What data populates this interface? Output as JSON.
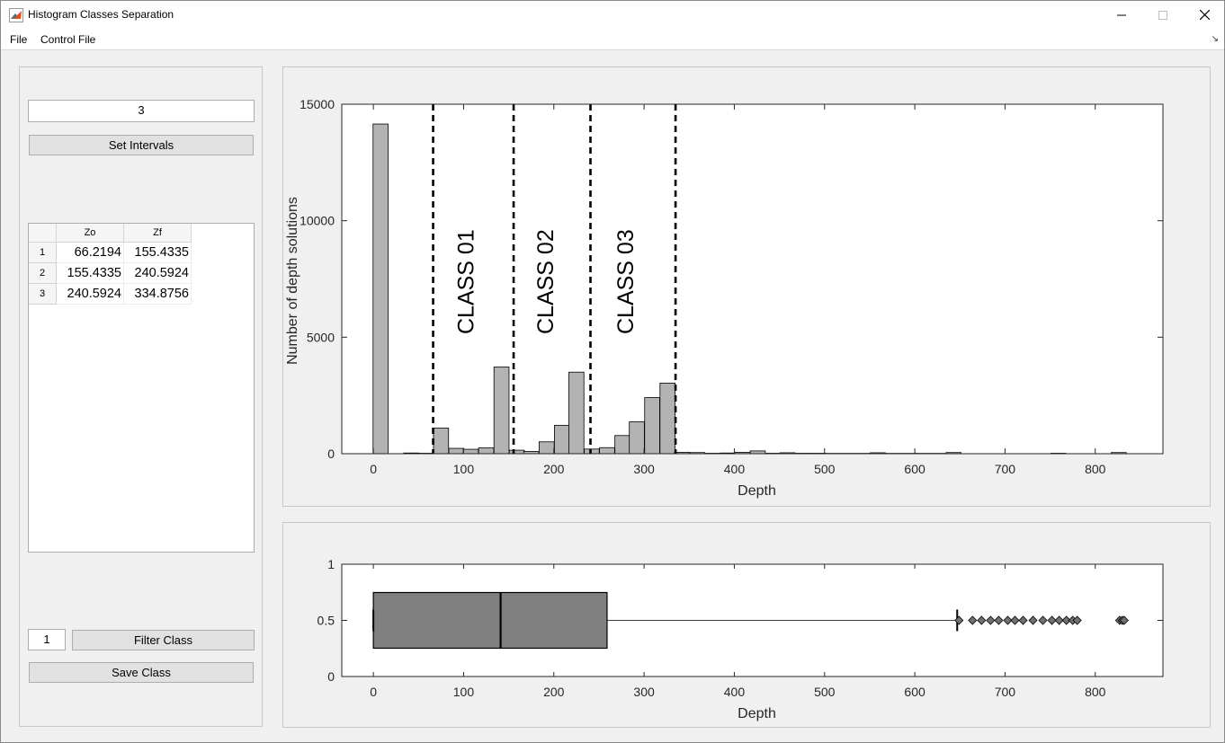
{
  "window": {
    "title": "Histogram Classes Separation"
  },
  "menu": {
    "items": [
      "File",
      "Control File"
    ]
  },
  "controls": {
    "intervals_value": "3",
    "set_intervals_label": "Set Intervals",
    "filter_value": "1",
    "filter_class_label": "Filter Class",
    "save_class_label": "Save Class"
  },
  "table": {
    "columns": [
      "Zo",
      "Zf"
    ],
    "row_labels": [
      "1",
      "2",
      "3"
    ],
    "rows": [
      [
        "66.2194",
        "155.4335"
      ],
      [
        "155.4335",
        "240.5924"
      ],
      [
        "240.5924",
        "334.8756"
      ]
    ]
  },
  "colors": {
    "bar_fill": "#b3b3b3",
    "box_fill": "#808080",
    "background": "#f0f0f0"
  },
  "chart_data": [
    {
      "type": "bar",
      "chart": "histogram",
      "xlabel": "Depth",
      "ylabel": "Number of depth solutions",
      "xlim": [
        -35,
        875
      ],
      "ylim": [
        0,
        15000
      ],
      "xticks": [
        0,
        100,
        200,
        300,
        400,
        500,
        600,
        700,
        800
      ],
      "yticks": [
        0,
        5000,
        10000,
        15000
      ],
      "bin_width": 16.7,
      "bins": [
        {
          "x": 8,
          "y": 14150
        },
        {
          "x": 42,
          "y": 30
        },
        {
          "x": 58,
          "y": 20
        },
        {
          "x": 75,
          "y": 1100
        },
        {
          "x": 92,
          "y": 230
        },
        {
          "x": 108,
          "y": 190
        },
        {
          "x": 125,
          "y": 250
        },
        {
          "x": 142,
          "y": 3720
        },
        {
          "x": 159,
          "y": 150
        },
        {
          "x": 175,
          "y": 100
        },
        {
          "x": 192,
          "y": 510
        },
        {
          "x": 209,
          "y": 1220
        },
        {
          "x": 225,
          "y": 3500
        },
        {
          "x": 242,
          "y": 200
        },
        {
          "x": 259,
          "y": 260
        },
        {
          "x": 276,
          "y": 780
        },
        {
          "x": 292,
          "y": 1370
        },
        {
          "x": 309,
          "y": 2410
        },
        {
          "x": 326,
          "y": 3030
        },
        {
          "x": 342,
          "y": 60
        },
        {
          "x": 359,
          "y": 50
        },
        {
          "x": 376,
          "y": 20
        },
        {
          "x": 393,
          "y": 30
        },
        {
          "x": 409,
          "y": 60
        },
        {
          "x": 426,
          "y": 120
        },
        {
          "x": 443,
          "y": 20
        },
        {
          "x": 459,
          "y": 40
        },
        {
          "x": 476,
          "y": 20
        },
        {
          "x": 493,
          "y": 20
        },
        {
          "x": 509,
          "y": 15
        },
        {
          "x": 526,
          "y": 15
        },
        {
          "x": 543,
          "y": 15
        },
        {
          "x": 559,
          "y": 40
        },
        {
          "x": 576,
          "y": 15
        },
        {
          "x": 593,
          "y": 15
        },
        {
          "x": 609,
          "y": 15
        },
        {
          "x": 626,
          "y": 15
        },
        {
          "x": 643,
          "y": 50
        },
        {
          "x": 759,
          "y": 20
        },
        {
          "x": 826,
          "y": 50
        }
      ],
      "dividers": [
        66.2194,
        155.4335,
        240.5924,
        334.8756
      ],
      "annotations": [
        {
          "text": "CLASS 01",
          "x": 111
        },
        {
          "text": "CLASS 02",
          "x": 199
        },
        {
          "text": "CLASS 03",
          "x": 288
        }
      ]
    },
    {
      "type": "boxplot",
      "xlabel": "Depth",
      "xlim": [
        -35,
        875
      ],
      "ylim": [
        0,
        1
      ],
      "xticks": [
        0,
        100,
        200,
        300,
        400,
        500,
        600,
        700,
        800
      ],
      "yticks": [
        0,
        0.5,
        1
      ],
      "min": 0,
      "q1": 0,
      "median": 141,
      "q3": 259,
      "whisker_high": 647,
      "outliers": [
        649,
        664,
        674,
        684,
        693,
        703,
        711,
        720,
        731,
        742,
        752,
        760,
        768,
        775,
        780,
        827,
        830,
        832
      ]
    }
  ]
}
